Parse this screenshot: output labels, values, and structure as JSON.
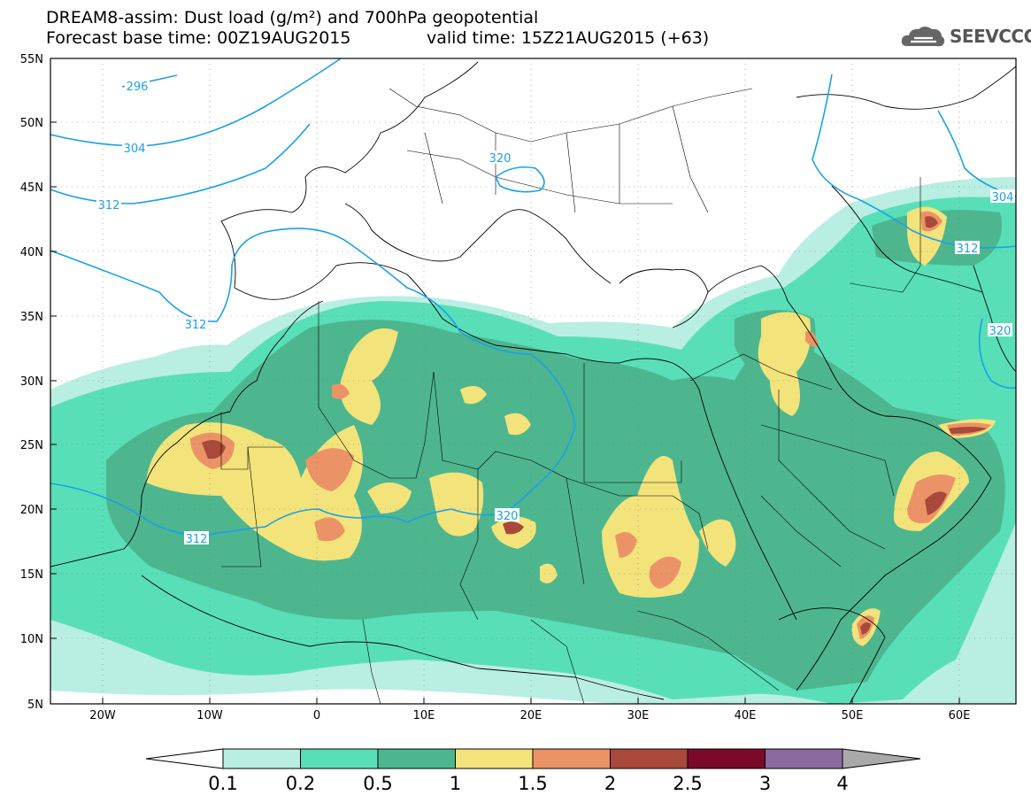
{
  "header": {
    "title": "DREAM8-assim: Dust load (g/m²) and 700hPa geopotential",
    "base_time": "Forecast base time: 00Z19AUG2015",
    "valid_time": "valid time: 15Z21AUG2015 (+63)"
  },
  "logo": {
    "text": "SEEVCCC",
    "icon": "cloud-logo-icon"
  },
  "map": {
    "lon_ticks": [
      "20W",
      "10W",
      "0",
      "10E",
      "20E",
      "30E",
      "40E",
      "50E",
      "60E"
    ],
    "lat_ticks": [
      "55N",
      "50N",
      "45N",
      "40N",
      "35N",
      "30N",
      "25N",
      "20N",
      "15N",
      "10N",
      "5N"
    ],
    "contour_labels": [
      "296",
      "304",
      "312",
      "320",
      "312",
      "312",
      "304",
      "312",
      "320",
      "320"
    ]
  },
  "colorbar": {
    "labels": [
      "0.1",
      "0.2",
      "0.5",
      "1",
      "1.5",
      "2",
      "2.5",
      "3",
      "4"
    ],
    "colors": [
      "#ffffff",
      "#b9eee2",
      "#58dfb7",
      "#4db68f",
      "#f2e37b",
      "#eb9366",
      "#a8493b",
      "#7b0a2a",
      "#8b6aa0",
      "#a9a9a9"
    ]
  }
}
